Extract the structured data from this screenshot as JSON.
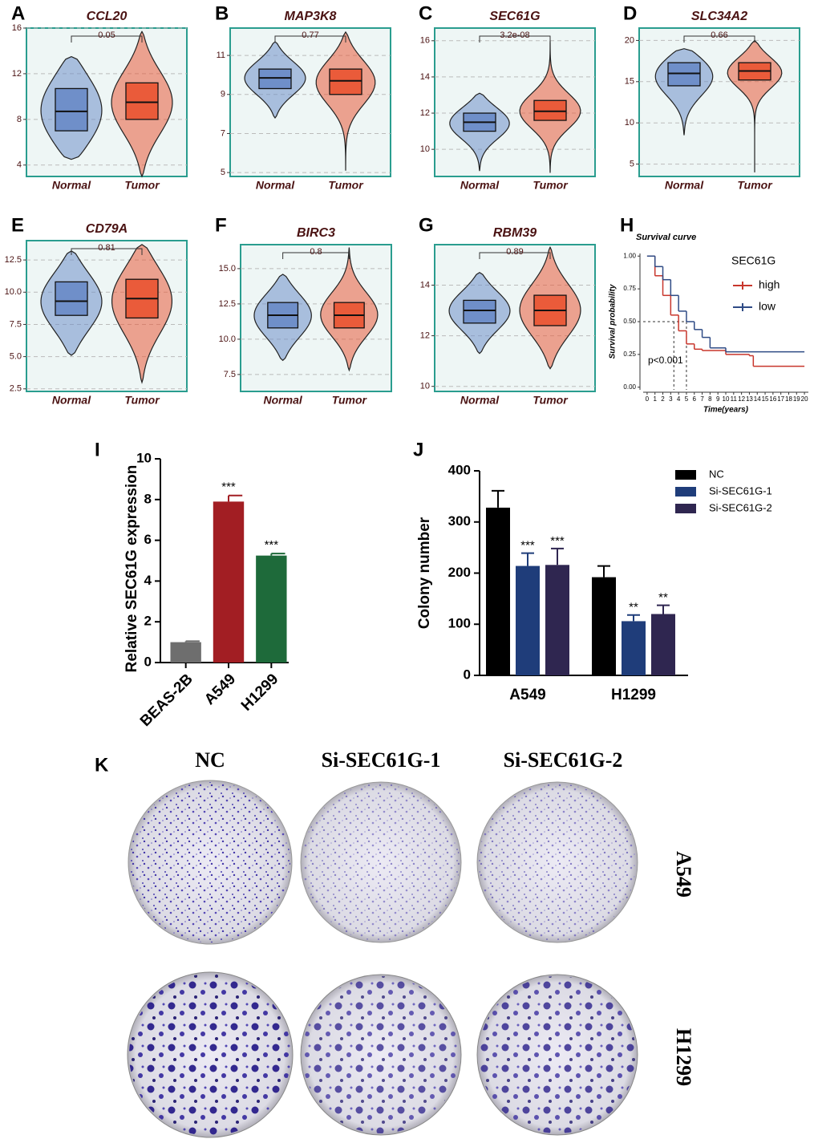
{
  "chart_data": [
    {
      "type": "violin",
      "panel": "A",
      "title": "CCL20",
      "annotation": "0.05",
      "categories": [
        "Normal",
        "Tumor"
      ],
      "colors": [
        "#6f8fc9",
        "#ea5b3a"
      ],
      "ylim": [
        3,
        16
      ],
      "yticks": [
        4,
        8,
        12,
        16
      ],
      "min": [
        4.5,
        3
      ],
      "q1": [
        7.0,
        8.0
      ],
      "median": [
        8.7,
        9.5
      ],
      "q3": [
        10.7,
        11.2
      ],
      "max": [
        13.5,
        15.7
      ]
    },
    {
      "type": "violin",
      "panel": "B",
      "title": "MAP3K8",
      "annotation": "0.77",
      "categories": [
        "Normal",
        "Tumor"
      ],
      "colors": [
        "#6f8fc9",
        "#ea5b3a"
      ],
      "ylim": [
        4.8,
        12.4
      ],
      "yticks": [
        5,
        7,
        9,
        11
      ],
      "min": [
        7.8,
        5.1
      ],
      "q1": [
        9.3,
        9.0
      ],
      "median": [
        9.85,
        9.7
      ],
      "q3": [
        10.3,
        10.3
      ],
      "max": [
        11.7,
        12.2
      ]
    },
    {
      "type": "violin",
      "panel": "C",
      "title": "SEC61G",
      "annotation": "3.2e-08",
      "categories": [
        "Normal",
        "Tumor"
      ],
      "colors": [
        "#6f8fc9",
        "#ea5b3a"
      ],
      "ylim": [
        8.5,
        16.7
      ],
      "yticks": [
        10,
        12,
        14,
        16
      ],
      "min": [
        8.8,
        8.7
      ],
      "q1": [
        11.0,
        11.6
      ],
      "median": [
        11.5,
        12.1
      ],
      "q3": [
        12.0,
        12.7
      ],
      "max": [
        13.1,
        16.0
      ]
    },
    {
      "type": "violin",
      "panel": "D",
      "title": "SLC34A2",
      "annotation": "0.66",
      "categories": [
        "Normal",
        "Tumor"
      ],
      "colors": [
        "#6f8fc9",
        "#ea5b3a"
      ],
      "ylim": [
        3.5,
        21.5
      ],
      "yticks": [
        5,
        10,
        15,
        20
      ],
      "min": [
        8.5,
        4.0
      ],
      "q1": [
        14.5,
        15.2
      ],
      "median": [
        16.0,
        16.3
      ],
      "q3": [
        17.3,
        17.3
      ],
      "max": [
        19.0,
        20.0
      ]
    },
    {
      "type": "violin",
      "panel": "E",
      "title": "CD79A",
      "annotation": "0.81",
      "categories": [
        "Normal",
        "Tumor"
      ],
      "colors": [
        "#6f8fc9",
        "#ea5b3a"
      ],
      "ylim": [
        2.3,
        14
      ],
      "yticks": [
        2.5,
        {
          "value": 5,
          "label": "5.0"
        },
        7.5,
        {
          "value": 10,
          "label": "10.0"
        },
        12.5
      ],
      "min": [
        5.1,
        3.0
      ],
      "q1": [
        8.2,
        8.0
      ],
      "median": [
        9.3,
        9.5
      ],
      "q3": [
        10.8,
        11.0
      ],
      "max": [
        13.2,
        13.7
      ]
    },
    {
      "type": "violin",
      "panel": "F",
      "title": "BIRC3",
      "annotation": "0.8",
      "categories": [
        "Normal",
        "Tumor"
      ],
      "colors": [
        "#6f8fc9",
        "#ea5b3a"
      ],
      "ylim": [
        6.3,
        16.7
      ],
      "yticks": [
        7.5,
        {
          "value": 10,
          "label": "10.0"
        },
        12.5,
        {
          "value": 15,
          "label": "15.0"
        }
      ],
      "min": [
        8.5,
        7.8
      ],
      "q1": [
        10.8,
        10.8
      ],
      "median": [
        11.7,
        11.7
      ],
      "q3": [
        12.6,
        12.6
      ],
      "max": [
        14.6,
        16.5
      ]
    },
    {
      "type": "violin",
      "panel": "G",
      "title": "RBM39",
      "annotation": "0.89",
      "categories": [
        "Normal",
        "Tumor"
      ],
      "colors": [
        "#6f8fc9",
        "#ea5b3a"
      ],
      "ylim": [
        9.8,
        15.6
      ],
      "yticks": [
        10,
        12,
        14
      ],
      "min": [
        11.3,
        10.7
      ],
      "q1": [
        12.5,
        12.4
      ],
      "median": [
        13.0,
        13.0
      ],
      "q3": [
        13.4,
        13.6
      ],
      "max": [
        14.5,
        15.5
      ]
    },
    {
      "type": "survival",
      "panel": "H",
      "title": "Survival curve",
      "x_label": "Time(years)",
      "y_label": "Survival probability",
      "annotation": "p<0.001",
      "legend_title": "SEC61G",
      "xlim": [
        -0.5,
        20.5
      ],
      "xticks": [
        0,
        1,
        2,
        3,
        4,
        5,
        6,
        7,
        8,
        9,
        10,
        11,
        12,
        13,
        14,
        15,
        16,
        17,
        18,
        19,
        20
      ],
      "ylim": [
        -0.02,
        1.02
      ],
      "yticks": [
        {
          "value": 0,
          "label": "0.00"
        },
        0.25,
        {
          "value": 0.5,
          "label": "0.50"
        },
        0.75,
        {
          "value": 1,
          "label": "1.00"
        }
      ],
      "series": [
        {
          "name": "high",
          "color": "#c8362c",
          "x": [
            0,
            1,
            2,
            3,
            4,
            5,
            6,
            7,
            10,
            13,
            13.5,
            20
          ],
          "values": [
            1,
            0.85,
            0.7,
            0.55,
            0.43,
            0.33,
            0.29,
            0.28,
            0.25,
            0.24,
            0.16,
            0.16
          ]
        },
        {
          "name": "low",
          "color": "#2f4b85",
          "x": [
            0,
            1,
            2,
            3,
            4,
            5,
            6,
            7,
            8,
            10,
            20
          ],
          "values": [
            1,
            0.92,
            0.82,
            0.7,
            0.58,
            0.5,
            0.44,
            0.38,
            0.3,
            0.27,
            0.27
          ]
        }
      ]
    },
    {
      "type": "bar",
      "panel": "I",
      "y_label": "Relative SEC61G expression",
      "categories": [
        "BEAS-2B",
        "A549",
        "H1299"
      ],
      "values": [
        1.0,
        7.9,
        5.25
      ],
      "errors": [
        0.05,
        0.3,
        0.1
      ],
      "significance": [
        null,
        "***",
        "***"
      ],
      "colors": [
        "#6e6e6e",
        "#a21e23",
        "#1e6a3a"
      ],
      "ylim": [
        0,
        10
      ],
      "yticks": [
        0,
        2,
        4,
        6,
        8,
        10
      ]
    },
    {
      "type": "grouped_bar",
      "panel": "J",
      "y_label": "Colony number",
      "categories": [
        "A549",
        "H1299"
      ],
      "ylim": [
        0,
        400
      ],
      "yticks": [
        0,
        100,
        200,
        300,
        400
      ],
      "series": [
        {
          "name": "NC",
          "color": "#000000",
          "values": [
            328,
            192
          ],
          "errors": [
            33,
            22
          ],
          "significance": [
            null,
            null
          ]
        },
        {
          "name": "Si-SEC61G-1",
          "color": "#1f3d7a",
          "values": [
            214,
            106
          ],
          "errors": [
            25,
            12
          ],
          "significance": [
            "***",
            "**"
          ]
        },
        {
          "name": "Si-SEC61G-2",
          "color": "#2f2650",
          "values": [
            216,
            120
          ],
          "errors": [
            32,
            17
          ],
          "significance": [
            "***",
            "**"
          ]
        }
      ]
    }
  ],
  "figure_k": {
    "panel": "K",
    "columns": [
      "NC",
      "Si-SEC61G-1",
      "Si-SEC61G-2"
    ],
    "rows": [
      "A549",
      "H1299"
    ]
  }
}
